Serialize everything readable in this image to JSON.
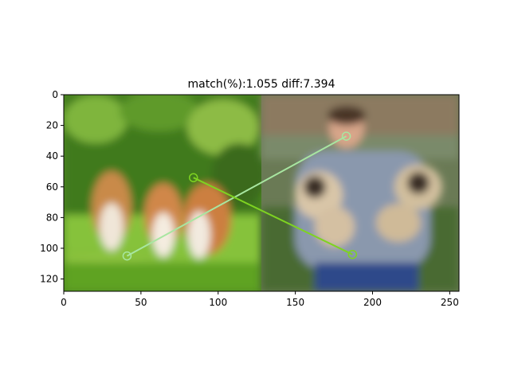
{
  "chart_data": {
    "type": "scatter",
    "title": "match(%):1.055 diff:7.394",
    "xlabel": "",
    "ylabel": "",
    "xlim": [
      0,
      256
    ],
    "ylim": [
      128,
      0
    ],
    "y_axis_inverted": true,
    "xticks": [
      0,
      50,
      100,
      150,
      200,
      250
    ],
    "yticks": [
      0,
      20,
      40,
      60,
      80,
      100,
      120
    ],
    "grid": false,
    "legend": "none",
    "background_images": [
      {
        "name": "corgi-dogs-photo",
        "x_range": [
          0,
          128
        ],
        "y_range": [
          0,
          128
        ]
      },
      {
        "name": "person-holding-pugs-photo",
        "x_range": [
          128,
          256
        ],
        "y_range": [
          0,
          128
        ]
      }
    ],
    "matches": [
      {
        "from": [
          41,
          105
        ],
        "to": [
          183,
          27
        ],
        "color": "#a8e6a1"
      },
      {
        "from": [
          84,
          54
        ],
        "to": [
          187,
          104
        ],
        "color": "#7ed321"
      }
    ]
  }
}
